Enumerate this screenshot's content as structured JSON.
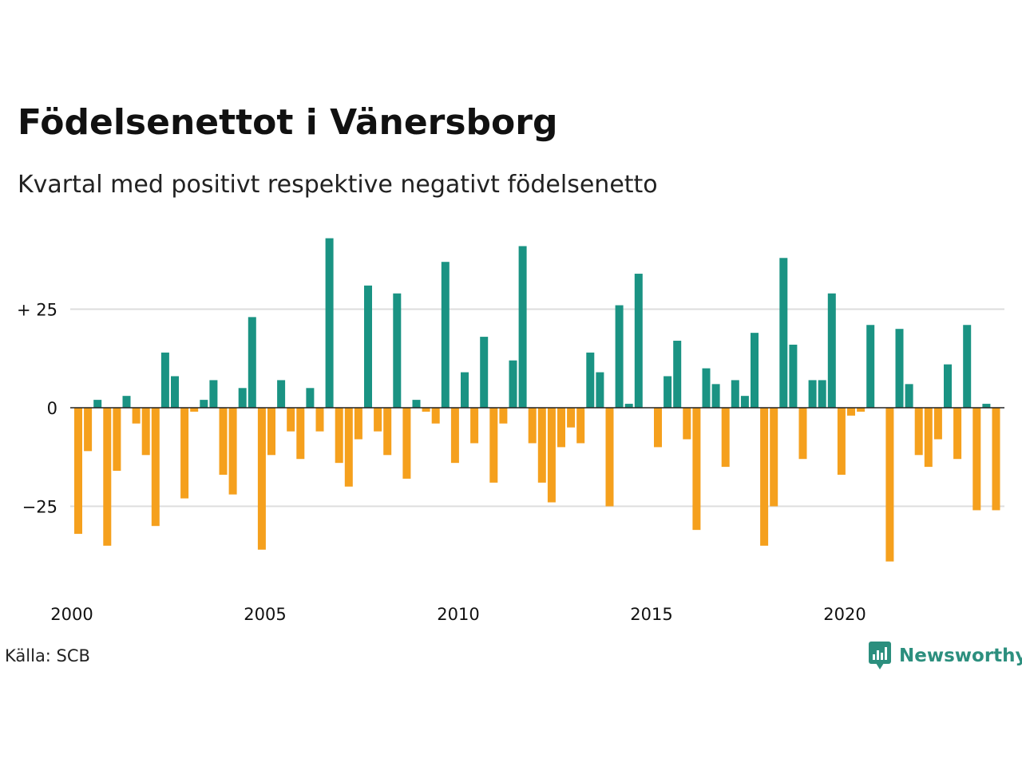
{
  "title": "Födelsenettot i Vänersborg",
  "subtitle": "Kvartal med positivt respektive negativt födelsenetto",
  "source": "Källa: SCB",
  "brand": {
    "name": "Newsworthy",
    "logo_icon": "chart-speech-bubble-icon"
  },
  "colors": {
    "positive": "#1a9383",
    "negative": "#f5a01d",
    "grid": "#dddddd",
    "zero_line": "#222222",
    "brand": "#2c8f7e"
  },
  "chart_data": {
    "type": "bar",
    "title": "Födelsenettot i Vänersborg",
    "subtitle": "Kvartal med positivt respektive negativt födelsenetto",
    "xlabel": "",
    "ylabel": "",
    "grid": true,
    "ylim": [
      -45,
      45
    ],
    "y_ticks": [
      {
        "value": 25,
        "label": "+ 25"
      },
      {
        "value": 0,
        "label": "0"
      },
      {
        "value": -25,
        "label": "−25"
      }
    ],
    "x_ticks": [
      {
        "year": 2000,
        "label": "2000"
      },
      {
        "year": 2005,
        "label": "2005"
      },
      {
        "year": 2010,
        "label": "2010"
      },
      {
        "year": 2015,
        "label": "2015"
      },
      {
        "year": 2020,
        "label": "2020"
      }
    ],
    "start_year": 2000,
    "quarters_per_year": 4,
    "categories": [
      "2000 K1",
      "2000 K2",
      "2000 K3",
      "2000 K4",
      "2001 K1",
      "2001 K2",
      "2001 K3",
      "2001 K4",
      "2002 K1",
      "2002 K2",
      "2002 K3",
      "2002 K4",
      "2003 K1",
      "2003 K2",
      "2003 K3",
      "2003 K4",
      "2004 K1",
      "2004 K2",
      "2004 K3",
      "2004 K4",
      "2005 K1",
      "2005 K2",
      "2005 K3",
      "2005 K4",
      "2006 K1",
      "2006 K2",
      "2006 K3",
      "2006 K4",
      "2007 K1",
      "2007 K2",
      "2007 K3",
      "2007 K4",
      "2008 K1",
      "2008 K2",
      "2008 K3",
      "2008 K4",
      "2009 K1",
      "2009 K2",
      "2009 K3",
      "2009 K4",
      "2010 K1",
      "2010 K2",
      "2010 K3",
      "2010 K4",
      "2011 K1",
      "2011 K2",
      "2011 K3",
      "2011 K4",
      "2012 K1",
      "2012 K2",
      "2012 K3",
      "2012 K4",
      "2013 K1",
      "2013 K2",
      "2013 K3",
      "2013 K4",
      "2014 K1",
      "2014 K2",
      "2014 K3",
      "2014 K4",
      "2015 K1",
      "2015 K2",
      "2015 K3",
      "2015 K4",
      "2016 K1",
      "2016 K2",
      "2016 K3",
      "2016 K4",
      "2017 K1",
      "2017 K2",
      "2017 K3",
      "2017 K4",
      "2018 K1",
      "2018 K2",
      "2018 K3",
      "2018 K4",
      "2019 K1",
      "2019 K2",
      "2019 K3",
      "2019 K4",
      "2020 K1",
      "2020 K2",
      "2020 K3",
      "2020 K4",
      "2021 K1",
      "2021 K2",
      "2021 K3",
      "2021 K4",
      "2022 K1",
      "2022 K2",
      "2022 K3",
      "2022 K4",
      "2023 K1",
      "2023 K2",
      "2023 K3",
      "2023 K4",
      "2024 K1"
    ],
    "values": [
      -32,
      -11,
      2,
      -35,
      -16,
      3,
      -4,
      -12,
      -30,
      14,
      8,
      -23,
      -1,
      2,
      7,
      -17,
      -22,
      5,
      23,
      -36,
      -12,
      7,
      -6,
      -13,
      5,
      -6,
      43,
      -14,
      -20,
      -8,
      31,
      -6,
      -12,
      29,
      -18,
      2,
      -1,
      -4,
      37,
      -14,
      9,
      -9,
      18,
      -19,
      -4,
      12,
      41,
      -9,
      -19,
      -24,
      -10,
      -5,
      -9,
      14,
      9,
      -25,
      26,
      1,
      34,
      0,
      -10,
      8,
      17,
      -8,
      -31,
      10,
      6,
      -15,
      7,
      3,
      19,
      -35,
      -25,
      38,
      16,
      -13,
      7,
      7,
      29,
      -17,
      -2,
      -1,
      21,
      0,
      -39,
      20,
      6,
      -12,
      -15,
      -8,
      11,
      -13,
      21,
      -26,
      1,
      -26,
      0
    ]
  }
}
